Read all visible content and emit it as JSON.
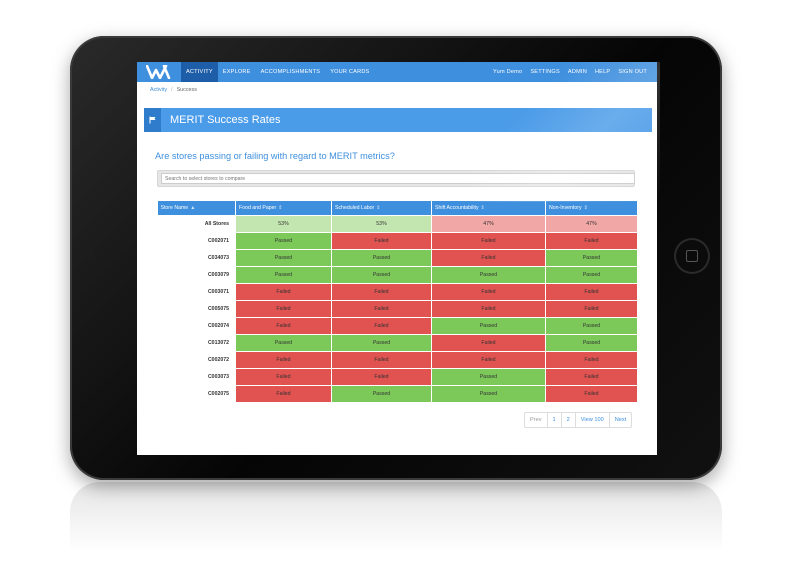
{
  "nav": {
    "left": [
      "ACTIVITY",
      "EXPLORE",
      "ACCOMPLISHMENTS",
      "YOUR CARDS"
    ],
    "right": [
      "Yum Demo",
      "SETTINGS",
      "ADMIN",
      "HELP",
      "SIGN OUT"
    ]
  },
  "breadcrumb": {
    "parent": "Activity",
    "separator": "/",
    "current": "Success"
  },
  "page": {
    "title": "MERIT Success Rates",
    "question": "Are stores passing or failing with regard to MERIT metrics?",
    "search_placeholder": "Search to select stores to compare"
  },
  "table": {
    "headers": [
      "Store Name",
      "Food and Paper",
      "Scheduled Labor",
      "Shift Accountability",
      "Non-Inventory"
    ],
    "sort_glyph_active": "▲",
    "sort_glyph": "⇕",
    "rows": [
      {
        "name": "All Stores",
        "cells": [
          "53%",
          "53%",
          "47%",
          "47%"
        ]
      },
      {
        "name": "C002071",
        "cells": [
          "Passed",
          "Failed",
          "Failed",
          "Failed"
        ]
      },
      {
        "name": "C034073",
        "cells": [
          "Passed",
          "Passed",
          "Failed",
          "Passed"
        ]
      },
      {
        "name": "C003079",
        "cells": [
          "Passed",
          "Passed",
          "Passed",
          "Passed"
        ]
      },
      {
        "name": "C003071",
        "cells": [
          "Failed",
          "Failed",
          "Failed",
          "Failed"
        ]
      },
      {
        "name": "C005075",
        "cells": [
          "Failed",
          "Failed",
          "Failed",
          "Failed"
        ]
      },
      {
        "name": "C002074",
        "cells": [
          "Failed",
          "Failed",
          "Passed",
          "Passed"
        ]
      },
      {
        "name": "C013072",
        "cells": [
          "Passed",
          "Passed",
          "Failed",
          "Passed"
        ]
      },
      {
        "name": "C002072",
        "cells": [
          "Failed",
          "Failed",
          "Failed",
          "Failed"
        ]
      },
      {
        "name": "C003073",
        "cells": [
          "Failed",
          "Failed",
          "Passed",
          "Failed"
        ]
      },
      {
        "name": "C002075",
        "cells": [
          "Failed",
          "Passed",
          "Passed",
          "Failed"
        ]
      }
    ]
  },
  "pagination": [
    "Prev",
    "1",
    "2",
    "View 100",
    "Next"
  ],
  "colors": {
    "brand": "#3e8fde",
    "pass": "#7cc95a",
    "fail": "#e05350",
    "pass_light": "#c3e6b0",
    "fail_light": "#f1a7a5"
  },
  "icons": {
    "logo": "w-logo-icon",
    "banner": "flag-icon"
  }
}
